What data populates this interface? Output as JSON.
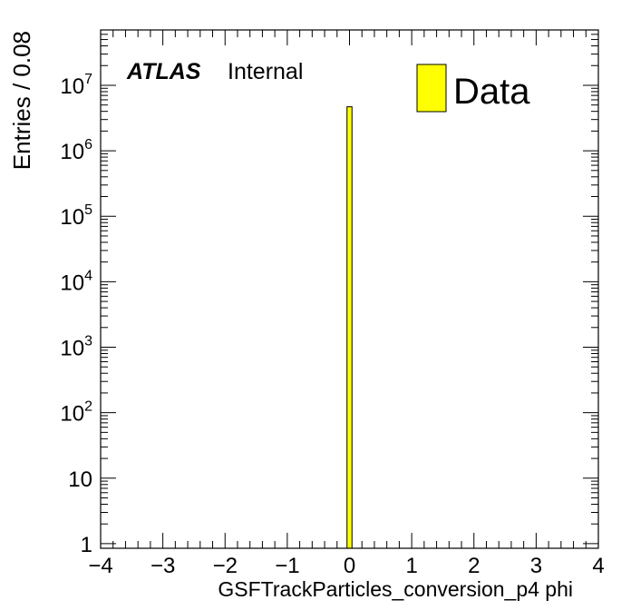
{
  "chart_data": {
    "type": "bar",
    "title": "",
    "xlabel": "GSFTrackParticles_conversion_p4 phi",
    "ylabel": "Entries / 0.08",
    "xlim": [
      -4,
      4
    ],
    "ylim": [
      0.85,
      70000000
    ],
    "yscale": "log",
    "bin_width": 0.08,
    "x_tick_labels": [
      "−4",
      "−3",
      "−2",
      "−1",
      "0",
      "1",
      "2",
      "3",
      "4"
    ],
    "y_tick_labels": [
      {
        "value": 1,
        "base": "1",
        "exp": ""
      },
      {
        "value": 10,
        "base": "10",
        "exp": ""
      },
      {
        "value": 100,
        "base": "10",
        "exp": "2"
      },
      {
        "value": 1000,
        "base": "10",
        "exp": "3"
      },
      {
        "value": 10000,
        "base": "10",
        "exp": "4"
      },
      {
        "value": 100000,
        "base": "10",
        "exp": "5"
      },
      {
        "value": 1000000,
        "base": "10",
        "exp": "6"
      },
      {
        "value": 10000000,
        "base": "10",
        "exp": "7"
      }
    ],
    "series": [
      {
        "name": "Data",
        "color": "#ffff00",
        "bins": [
          {
            "x_low": -0.04,
            "x_high": 0.04,
            "value": 4700000
          }
        ]
      }
    ],
    "legend_position": "top-right",
    "grid": false
  },
  "annotation": {
    "experiment": "ATLAS",
    "status": "Internal"
  }
}
